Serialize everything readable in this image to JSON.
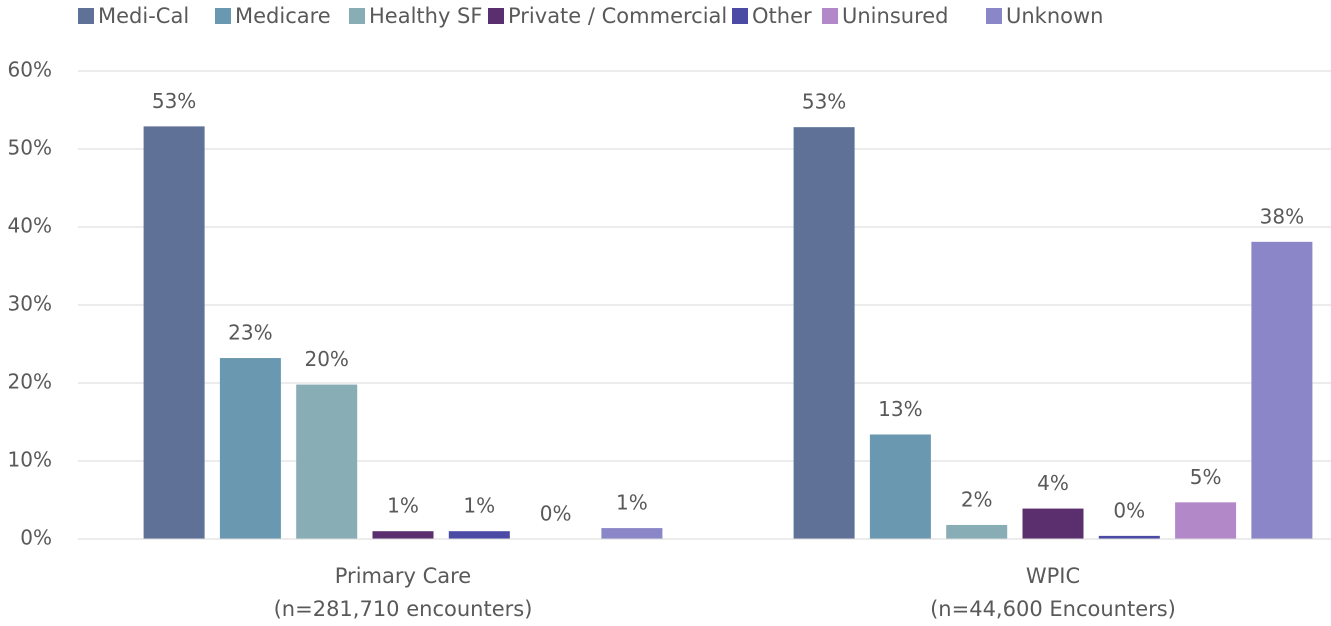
{
  "chart_data": {
    "type": "bar",
    "categories": [
      "Primary Care\n(n=281,710 encounters)",
      "WPIC\n(n=44,600 Encounters)"
    ],
    "series": [
      {
        "name": "Medi-Cal",
        "color": "#5f7197",
        "values": [
          52.9,
          52.8
        ],
        "value_labels": [
          "53%",
          "53%"
        ]
      },
      {
        "name": "Medicare",
        "color": "#6a98b0",
        "values": [
          23.2,
          13.4
        ],
        "value_labels": [
          "23%",
          "13%"
        ]
      },
      {
        "name": "Healthy SF",
        "color": "#88adb5",
        "values": [
          19.8,
          1.8
        ],
        "value_labels": [
          "20%",
          "2%"
        ]
      },
      {
        "name": "Private / Commercial",
        "color": "#5b2f6e",
        "values": [
          1.0,
          3.9
        ],
        "value_labels": [
          "1%",
          "4%"
        ]
      },
      {
        "name": "Other",
        "color": "#4b4ba6",
        "values": [
          1.0,
          0.4
        ],
        "value_labels": [
          "1%",
          "0%"
        ]
      },
      {
        "name": "Uninsured",
        "color": "#b388c9",
        "values": [
          0,
          4.7
        ],
        "value_labels": [
          "0%",
          "5%"
        ]
      },
      {
        "name": "Unknown",
        "color": "#8a86c8",
        "values": [
          1.4,
          38.1
        ],
        "value_labels": [
          "1%",
          "38%"
        ]
      }
    ],
    "ylim": [
      0,
      60
    ],
    "yticks": [
      {
        "value": 0,
        "label": "0%"
      },
      {
        "value": 10,
        "label": "10%"
      },
      {
        "value": 20,
        "label": "20%"
      },
      {
        "value": 30,
        "label": "30%"
      },
      {
        "value": 40,
        "label": "40%"
      },
      {
        "value": 50,
        "label": "50%"
      },
      {
        "value": 60,
        "label": "60%"
      }
    ],
    "grid": true,
    "legend": "top"
  }
}
